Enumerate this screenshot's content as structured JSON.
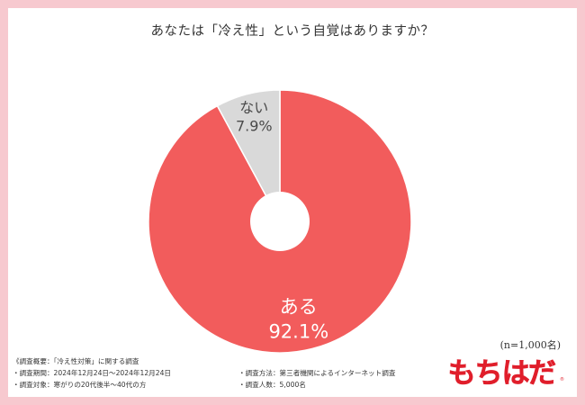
{
  "title": "あなたは「冷え性」という自覚はありますか？",
  "chart_data": {
    "type": "pie",
    "slices": [
      {
        "label": "ある",
        "value": 92.1,
        "value_label": "92.1%",
        "color": "#f25c5c"
      },
      {
        "label": "ない",
        "value": 7.9,
        "value_label": "7.9%",
        "color": "#d9d9d9"
      }
    ],
    "donut_hole": true
  },
  "sample_size": "(n=1,000名)",
  "footnotes": {
    "overview": "《調査概要：「冷え性対策」に関する調査",
    "period": "・調査期間：2024年12月24日～2024年12月24日",
    "method": "・調査方法：第三者機関によるインターネット調査",
    "target": "・調査対象：寒がりの20代後半～40代の方",
    "respondents": "・調査人数：5,000名"
  },
  "logo": {
    "text": "もちはだ",
    "mark": "®"
  }
}
